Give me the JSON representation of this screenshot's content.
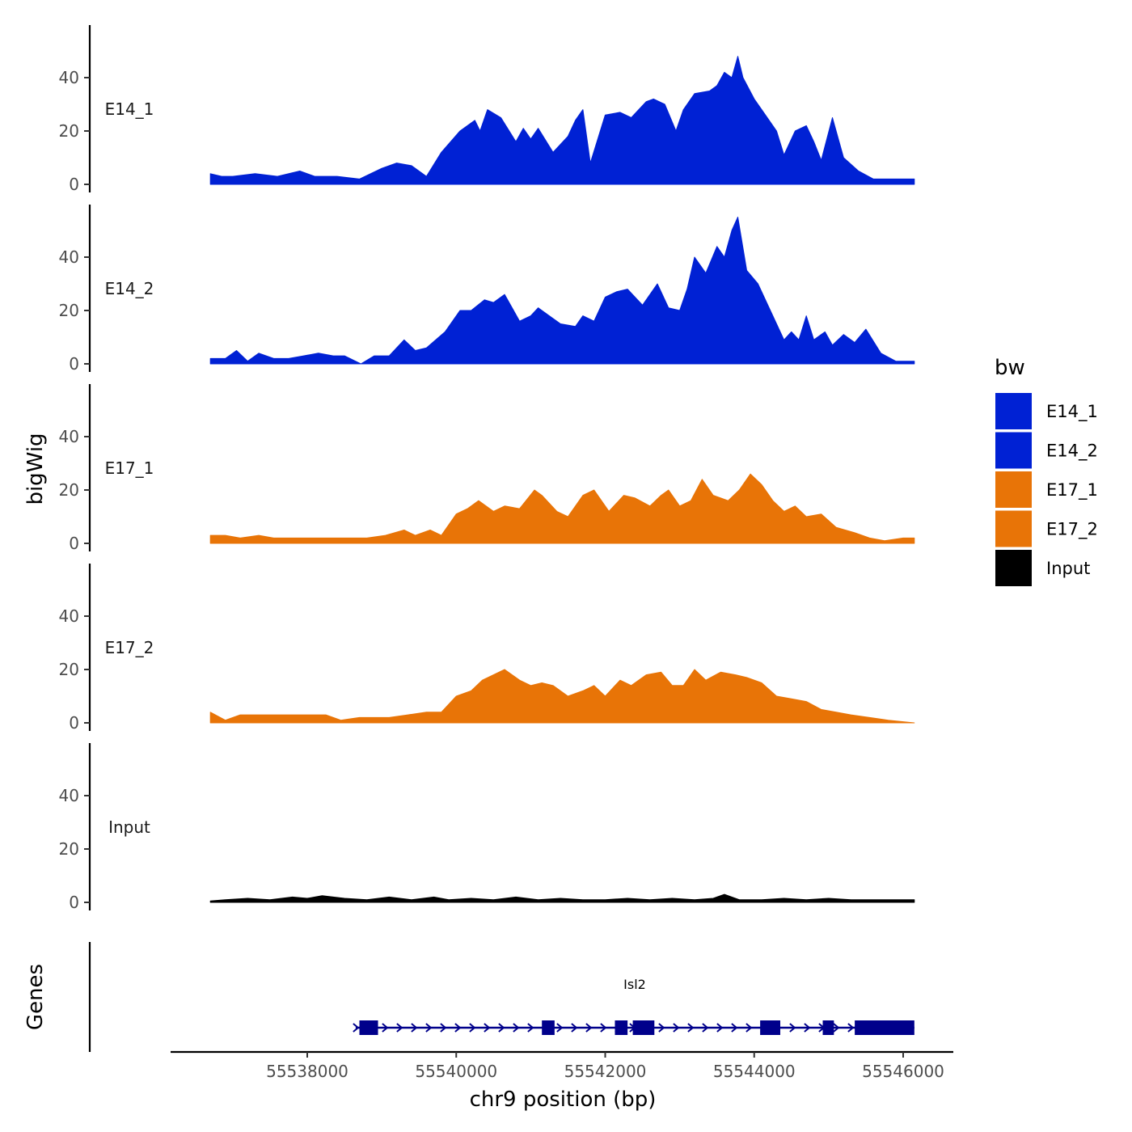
{
  "chart_data": {
    "type": "area",
    "ylabel": "bigWig",
    "xlabel": "chr9 position (bp)",
    "x_range": [
      55536700,
      55546150
    ],
    "ylim": [
      0,
      60
    ],
    "y_ticks": [
      0,
      20,
      40
    ],
    "x_ticks": [
      55538000,
      55540000,
      55542000,
      55544000,
      55546000
    ],
    "x_tick_labels": [
      "55538000",
      "55540000",
      "55542000",
      "55544000",
      "55546000"
    ],
    "genes_label": "Genes",
    "legend": {
      "title": "bw",
      "entries": [
        {
          "label": "E14_1",
          "color": "#0021d4"
        },
        {
          "label": "E14_2",
          "color": "#0021d4"
        },
        {
          "label": "E17_1",
          "color": "#e87407"
        },
        {
          "label": "E17_2",
          "color": "#e87407"
        },
        {
          "label": "Input",
          "color": "#000000"
        }
      ]
    },
    "tracks": [
      {
        "name": "E14_1",
        "color": "#0021d4",
        "points": [
          [
            55536700,
            4
          ],
          [
            55536850,
            3
          ],
          [
            55537000,
            3
          ],
          [
            55537300,
            4
          ],
          [
            55537600,
            3
          ],
          [
            55537900,
            5
          ],
          [
            55538100,
            3
          ],
          [
            55538400,
            3
          ],
          [
            55538700,
            2
          ],
          [
            55539000,
            6
          ],
          [
            55539200,
            8
          ],
          [
            55539400,
            7
          ],
          [
            55539600,
            3
          ],
          [
            55539800,
            12
          ],
          [
            55540050,
            20
          ],
          [
            55540250,
            24
          ],
          [
            55540320,
            20
          ],
          [
            55540420,
            28
          ],
          [
            55540600,
            25
          ],
          [
            55540800,
            16
          ],
          [
            55540900,
            21
          ],
          [
            55541000,
            17
          ],
          [
            55541100,
            21
          ],
          [
            55541300,
            12
          ],
          [
            55541500,
            18
          ],
          [
            55541600,
            24
          ],
          [
            55541700,
            28
          ],
          [
            55541800,
            8
          ],
          [
            55542000,
            26
          ],
          [
            55542200,
            27
          ],
          [
            55542350,
            25
          ],
          [
            55542550,
            31
          ],
          [
            55542650,
            32
          ],
          [
            55542800,
            30
          ],
          [
            55542950,
            20
          ],
          [
            55543050,
            28
          ],
          [
            55543200,
            34
          ],
          [
            55543400,
            35
          ],
          [
            55543500,
            37
          ],
          [
            55543600,
            42
          ],
          [
            55543700,
            40
          ],
          [
            55543780,
            48
          ],
          [
            55543850,
            40
          ],
          [
            55544000,
            32
          ],
          [
            55544150,
            26
          ],
          [
            55544300,
            20
          ],
          [
            55544400,
            11
          ],
          [
            55544550,
            20
          ],
          [
            55544700,
            22
          ],
          [
            55544800,
            16
          ],
          [
            55544900,
            9
          ],
          [
            55545050,
            25
          ],
          [
            55545200,
            10
          ],
          [
            55545400,
            5
          ],
          [
            55545600,
            2
          ],
          [
            55546150,
            2
          ]
        ]
      },
      {
        "name": "E14_2",
        "color": "#0021d4",
        "points": [
          [
            55536700,
            2
          ],
          [
            55536900,
            2
          ],
          [
            55537050,
            5
          ],
          [
            55537200,
            1
          ],
          [
            55537350,
            4
          ],
          [
            55537550,
            2
          ],
          [
            55537750,
            2
          ],
          [
            55537950,
            3
          ],
          [
            55538150,
            4
          ],
          [
            55538350,
            3
          ],
          [
            55538500,
            3
          ],
          [
            55538720,
            0
          ],
          [
            55538900,
            3
          ],
          [
            55539100,
            3
          ],
          [
            55539300,
            9
          ],
          [
            55539450,
            5
          ],
          [
            55539600,
            6
          ],
          [
            55539850,
            12
          ],
          [
            55540050,
            20
          ],
          [
            55540200,
            20
          ],
          [
            55540380,
            24
          ],
          [
            55540500,
            23
          ],
          [
            55540650,
            26
          ],
          [
            55540850,
            16
          ],
          [
            55541000,
            18
          ],
          [
            55541100,
            21
          ],
          [
            55541250,
            18
          ],
          [
            55541400,
            15
          ],
          [
            55541600,
            14
          ],
          [
            55541700,
            18
          ],
          [
            55541850,
            16
          ],
          [
            55542000,
            25
          ],
          [
            55542150,
            27
          ],
          [
            55542300,
            28
          ],
          [
            55542500,
            22
          ],
          [
            55542700,
            30
          ],
          [
            55542850,
            21
          ],
          [
            55543000,
            20
          ],
          [
            55543100,
            28
          ],
          [
            55543200,
            40
          ],
          [
            55543350,
            34
          ],
          [
            55543500,
            44
          ],
          [
            55543600,
            40
          ],
          [
            55543700,
            50
          ],
          [
            55543780,
            55
          ],
          [
            55543900,
            35
          ],
          [
            55544050,
            30
          ],
          [
            55544250,
            18
          ],
          [
            55544400,
            9
          ],
          [
            55544500,
            12
          ],
          [
            55544600,
            9
          ],
          [
            55544700,
            18
          ],
          [
            55544800,
            9
          ],
          [
            55544950,
            12
          ],
          [
            55545050,
            7
          ],
          [
            55545200,
            11
          ],
          [
            55545350,
            8
          ],
          [
            55545500,
            13
          ],
          [
            55545700,
            4
          ],
          [
            55545900,
            1
          ],
          [
            55546150,
            1
          ]
        ]
      },
      {
        "name": "E17_1",
        "color": "#e87407",
        "points": [
          [
            55536700,
            3
          ],
          [
            55536900,
            3
          ],
          [
            55537100,
            2
          ],
          [
            55537350,
            3
          ],
          [
            55537550,
            2
          ],
          [
            55537800,
            2
          ],
          [
            55538050,
            2
          ],
          [
            55538300,
            2
          ],
          [
            55538550,
            2
          ],
          [
            55538800,
            2
          ],
          [
            55539050,
            3
          ],
          [
            55539300,
            5
          ],
          [
            55539450,
            3
          ],
          [
            55539650,
            5
          ],
          [
            55539800,
            3
          ],
          [
            55540000,
            11
          ],
          [
            55540150,
            13
          ],
          [
            55540300,
            16
          ],
          [
            55540500,
            12
          ],
          [
            55540650,
            14
          ],
          [
            55540850,
            13
          ],
          [
            55541050,
            20
          ],
          [
            55541150,
            18
          ],
          [
            55541350,
            12
          ],
          [
            55541500,
            10
          ],
          [
            55541700,
            18
          ],
          [
            55541850,
            20
          ],
          [
            55542050,
            12
          ],
          [
            55542250,
            18
          ],
          [
            55542400,
            17
          ],
          [
            55542600,
            14
          ],
          [
            55542750,
            18
          ],
          [
            55542850,
            20
          ],
          [
            55543000,
            14
          ],
          [
            55543150,
            16
          ],
          [
            55543300,
            24
          ],
          [
            55543450,
            18
          ],
          [
            55543650,
            16
          ],
          [
            55543800,
            20
          ],
          [
            55543950,
            26
          ],
          [
            55544100,
            22
          ],
          [
            55544250,
            16
          ],
          [
            55544400,
            12
          ],
          [
            55544550,
            14
          ],
          [
            55544700,
            10
          ],
          [
            55544900,
            11
          ],
          [
            55545100,
            6
          ],
          [
            55545350,
            4
          ],
          [
            55545550,
            2
          ],
          [
            55545750,
            1
          ],
          [
            55546000,
            2
          ],
          [
            55546150,
            2
          ]
        ]
      },
      {
        "name": "E17_2",
        "color": "#e87407",
        "points": [
          [
            55536700,
            4
          ],
          [
            55536900,
            1
          ],
          [
            55537100,
            3
          ],
          [
            55537300,
            3
          ],
          [
            55537550,
            3
          ],
          [
            55537750,
            3
          ],
          [
            55538000,
            3
          ],
          [
            55538250,
            3
          ],
          [
            55538450,
            1
          ],
          [
            55538700,
            2
          ],
          [
            55538900,
            2
          ],
          [
            55539100,
            2
          ],
          [
            55539350,
            3
          ],
          [
            55539600,
            4
          ],
          [
            55539800,
            4
          ],
          [
            55540000,
            10
          ],
          [
            55540200,
            12
          ],
          [
            55540350,
            16
          ],
          [
            55540500,
            18
          ],
          [
            55540650,
            20
          ],
          [
            55540850,
            16
          ],
          [
            55541000,
            14
          ],
          [
            55541150,
            15
          ],
          [
            55541300,
            14
          ],
          [
            55541500,
            10
          ],
          [
            55541700,
            12
          ],
          [
            55541850,
            14
          ],
          [
            55542000,
            10
          ],
          [
            55542200,
            16
          ],
          [
            55542350,
            14
          ],
          [
            55542550,
            18
          ],
          [
            55542750,
            19
          ],
          [
            55542900,
            14
          ],
          [
            55543050,
            14
          ],
          [
            55543200,
            20
          ],
          [
            55543350,
            16
          ],
          [
            55543550,
            19
          ],
          [
            55543750,
            18
          ],
          [
            55543900,
            17
          ],
          [
            55544100,
            15
          ],
          [
            55544300,
            10
          ],
          [
            55544500,
            9
          ],
          [
            55544700,
            8
          ],
          [
            55544900,
            5
          ],
          [
            55545100,
            4
          ],
          [
            55545300,
            3
          ],
          [
            55545550,
            2
          ],
          [
            55545800,
            1
          ],
          [
            55546150,
            0
          ]
        ]
      },
      {
        "name": "Input",
        "color": "#000000",
        "points": [
          [
            55536700,
            0.5
          ],
          [
            55536900,
            1
          ],
          [
            55537200,
            1.5
          ],
          [
            55537500,
            1
          ],
          [
            55537800,
            2
          ],
          [
            55538000,
            1.5
          ],
          [
            55538200,
            2.5
          ],
          [
            55538500,
            1.5
          ],
          [
            55538800,
            1
          ],
          [
            55539100,
            2
          ],
          [
            55539400,
            1
          ],
          [
            55539700,
            2
          ],
          [
            55539900,
            1
          ],
          [
            55540200,
            1.5
          ],
          [
            55540500,
            1
          ],
          [
            55540800,
            2
          ],
          [
            55541100,
            1
          ],
          [
            55541400,
            1.5
          ],
          [
            55541700,
            1
          ],
          [
            55542000,
            1
          ],
          [
            55542300,
            1.5
          ],
          [
            55542600,
            1
          ],
          [
            55542900,
            1.5
          ],
          [
            55543200,
            1
          ],
          [
            55543450,
            1.5
          ],
          [
            55543600,
            3
          ],
          [
            55543800,
            1
          ],
          [
            55544100,
            1
          ],
          [
            55544400,
            1.5
          ],
          [
            55544700,
            1
          ],
          [
            55545000,
            1.5
          ],
          [
            55545300,
            1
          ],
          [
            55545600,
            1
          ],
          [
            55545900,
            1
          ],
          [
            55546150,
            1
          ]
        ]
      }
    ],
    "gene": {
      "name": "Isl2",
      "strand": "+",
      "start": 55538650,
      "end": 55546150,
      "exons": [
        [
          55538700,
          55538950
        ],
        [
          55541150,
          55541320
        ],
        [
          55542130,
          55542300
        ],
        [
          55542370,
          55542660
        ],
        [
          55544080,
          55544350
        ],
        [
          55544920,
          55545070
        ],
        [
          55545350,
          55546150
        ]
      ]
    }
  }
}
